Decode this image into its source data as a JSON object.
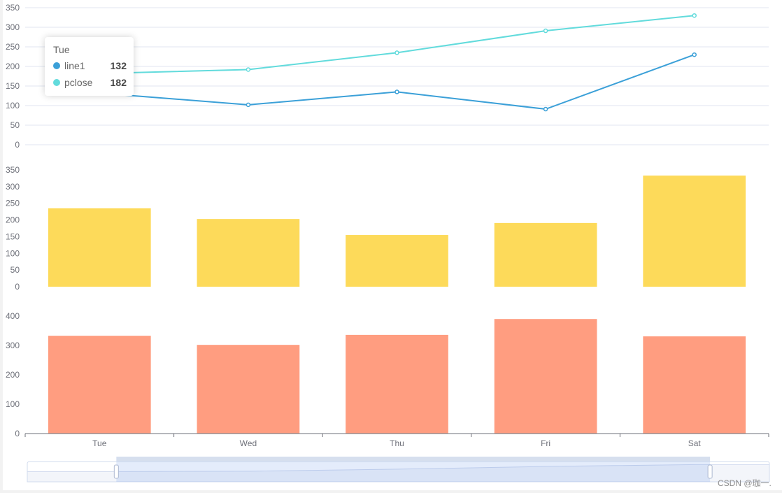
{
  "chart_data": [
    {
      "type": "line",
      "title": "",
      "categories": [
        "Tue",
        "Wed",
        "Thu",
        "Fri",
        "Sat"
      ],
      "series": [
        {
          "name": "line1",
          "color": "#3ba0d8",
          "values": [
            132,
            102,
            135,
            91,
            230
          ]
        },
        {
          "name": "pclose",
          "color": "#62dbdc",
          "values": [
            182,
            192,
            235,
            291,
            330
          ]
        }
      ],
      "ylim": [
        0,
        350
      ],
      "yticks": [
        "0",
        "50",
        "100",
        "150",
        "200",
        "250",
        "300",
        "350"
      ],
      "grid": true
    },
    {
      "type": "bar",
      "categories": [
        "Tue",
        "Wed",
        "Thu",
        "Fri",
        "Sat"
      ],
      "series": [
        {
          "name": "",
          "color": "#fdda5a",
          "values": [
            235,
            203,
            155,
            191,
            333
          ]
        }
      ],
      "ylim": [
        0,
        350
      ],
      "yticks": [
        "0",
        "50",
        "100",
        "150",
        "200",
        "250",
        "300",
        "350"
      ],
      "grid": false
    },
    {
      "type": "bar",
      "categories": [
        "Tue",
        "Wed",
        "Thu",
        "Fri",
        "Sat"
      ],
      "series": [
        {
          "name": "",
          "color": "#ff9d80",
          "values": [
            333,
            302,
            336,
            390,
            331
          ]
        }
      ],
      "ylim": [
        0,
        400
      ],
      "yticks": [
        "0",
        "100",
        "200",
        "300",
        "400"
      ],
      "xlabels": [
        "Tue",
        "Wed",
        "Thu",
        "Fri",
        "Sat"
      ],
      "grid": false
    }
  ],
  "tooltip": {
    "title": "Tue",
    "rows": [
      {
        "name": "line1",
        "value": "132",
        "color": "#3ba0d8"
      },
      {
        "name": "pclose",
        "value": "182",
        "color": "#62dbdc"
      }
    ]
  },
  "data_zoom": {
    "start_percent": 12,
    "end_percent": 92
  },
  "watermark": "CSDN @珈一."
}
